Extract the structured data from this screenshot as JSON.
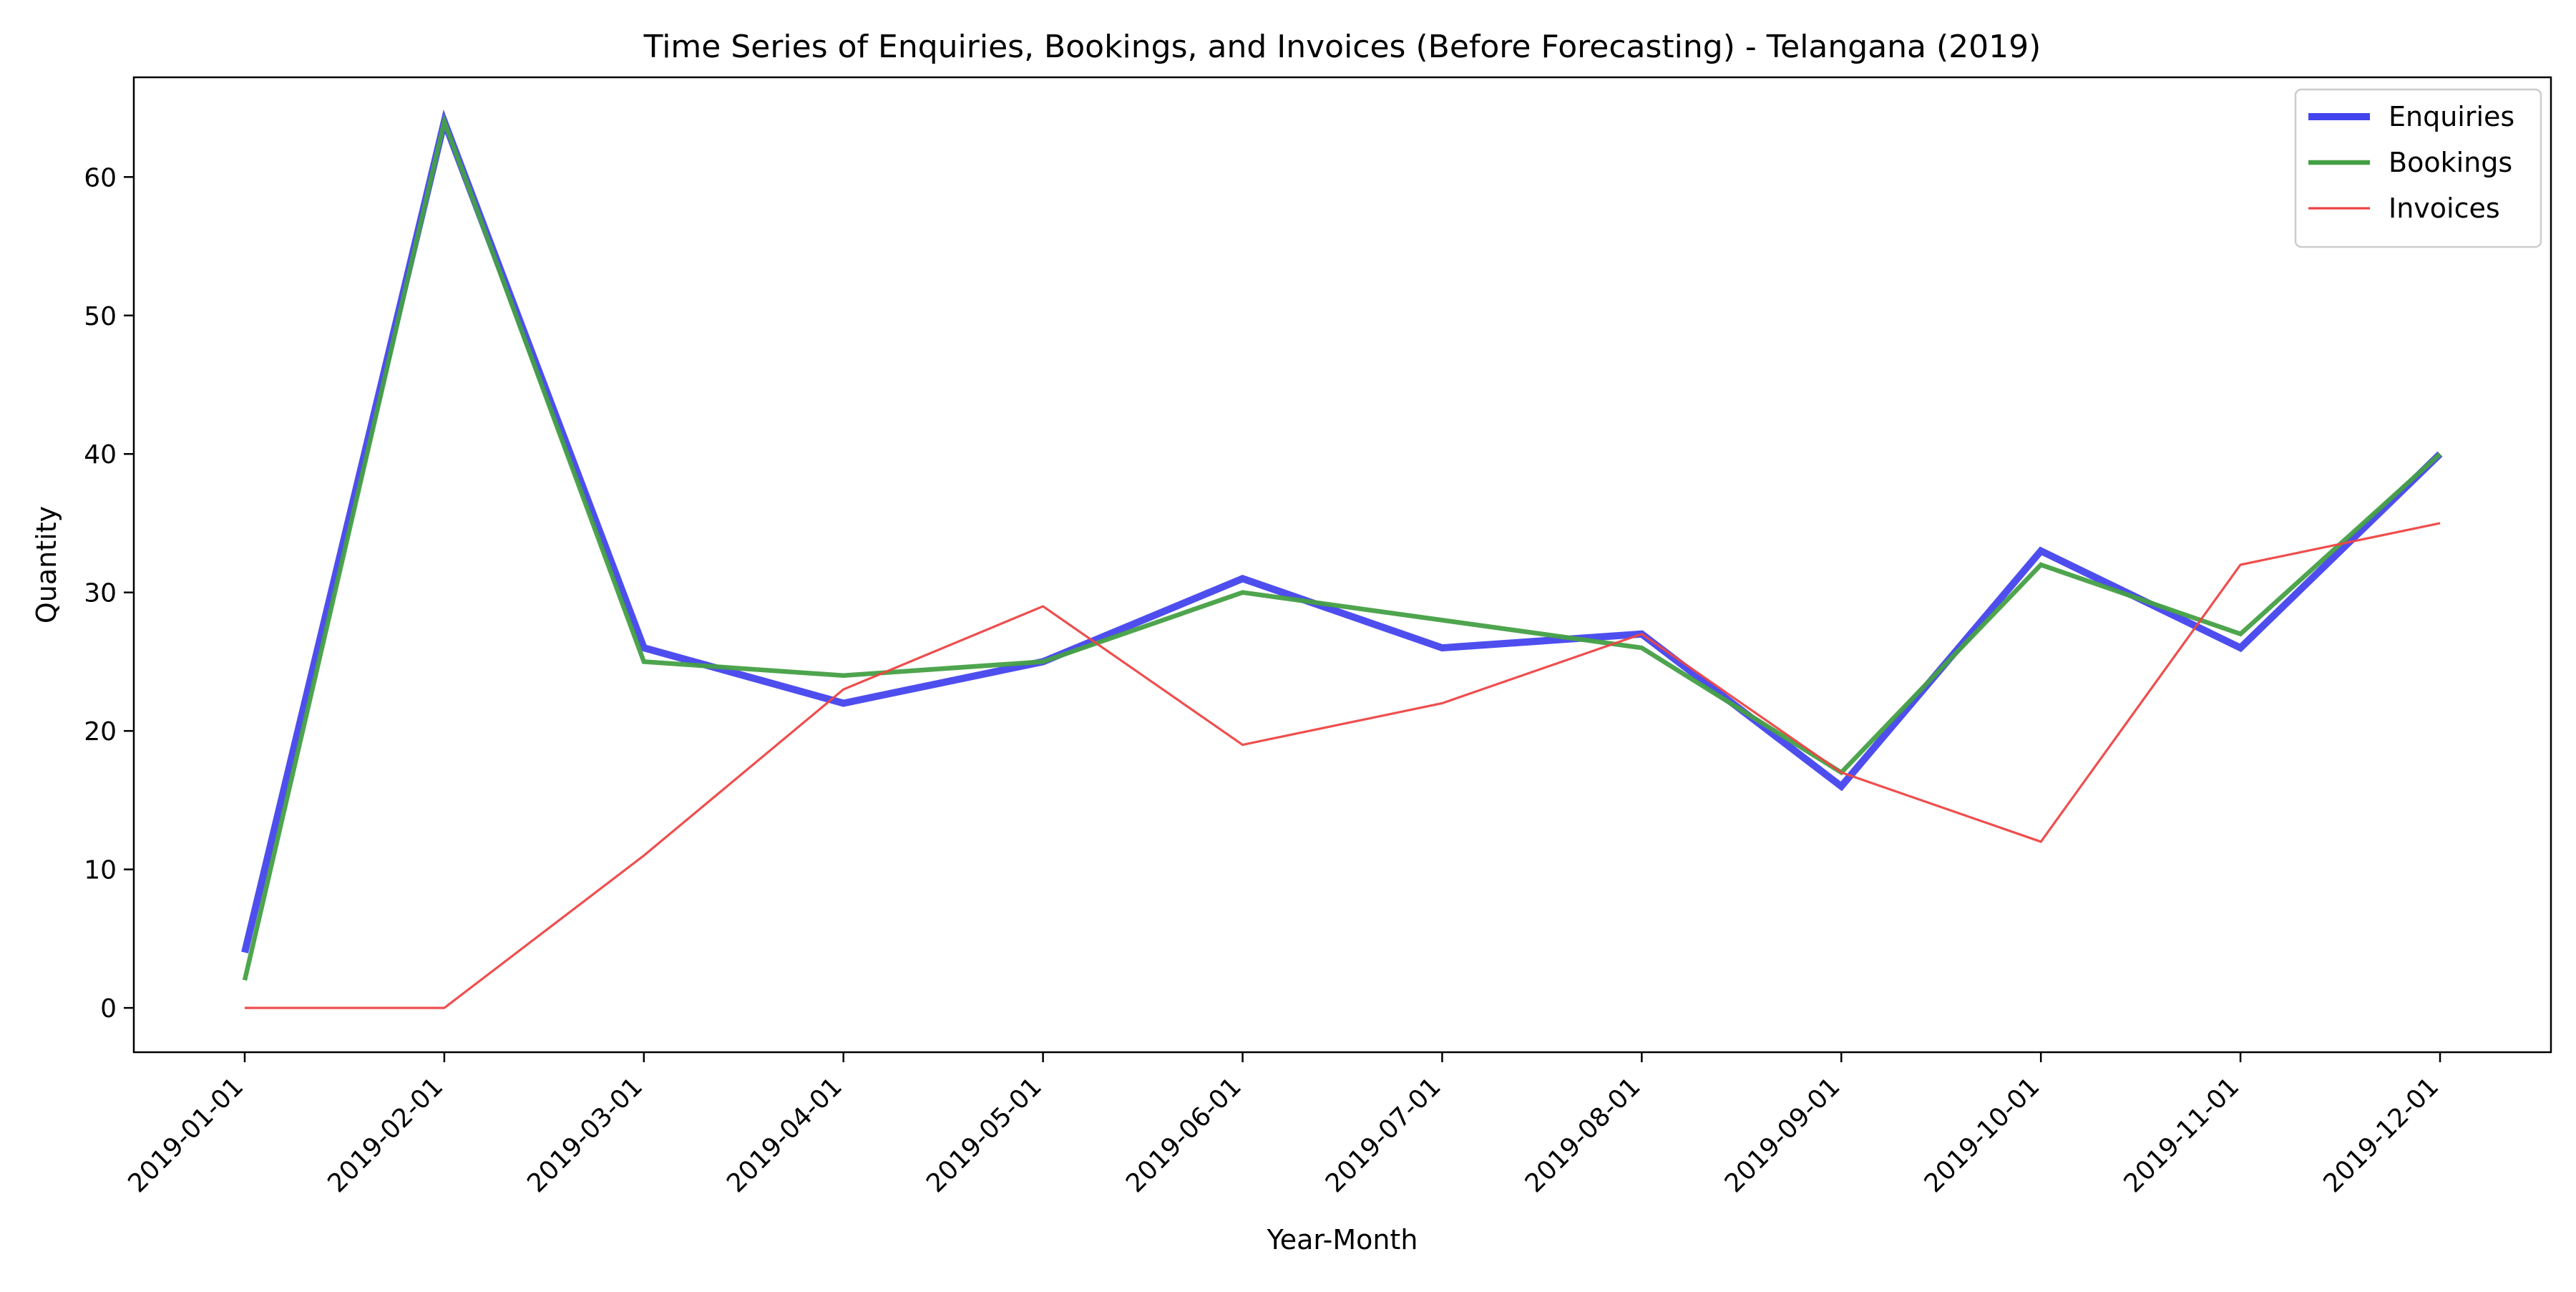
{
  "chart_data": {
    "type": "line",
    "title": "Time Series of Enquiries, Bookings, and Invoices (Before Forecasting) - Telangana (2019)",
    "xlabel": "Year-Month",
    "ylabel": "Quantity",
    "categories": [
      "2019-01-01",
      "2019-02-01",
      "2019-03-01",
      "2019-04-01",
      "2019-05-01",
      "2019-06-01",
      "2019-07-01",
      "2019-08-01",
      "2019-09-01",
      "2019-10-01",
      "2019-11-01",
      "2019-12-01"
    ],
    "ylim": [
      -3.2,
      67.2
    ],
    "yticks": [
      0,
      10,
      20,
      30,
      40,
      50,
      60
    ],
    "grid": false,
    "legend_position": "top-right",
    "series": [
      {
        "name": "Enquiries",
        "color": "#4444ee",
        "values": [
          4,
          64,
          26,
          22,
          25,
          31,
          26,
          27,
          16,
          33,
          26,
          40
        ]
      },
      {
        "name": "Bookings",
        "color": "#44a044",
        "values": [
          2,
          64,
          25,
          24,
          25,
          30,
          28,
          26,
          17,
          32,
          27,
          40
        ]
      },
      {
        "name": "Invoices",
        "color": "#ee4444",
        "values": [
          0,
          0,
          11,
          23,
          29,
          19,
          22,
          27,
          17,
          12,
          32,
          35
        ]
      }
    ]
  }
}
